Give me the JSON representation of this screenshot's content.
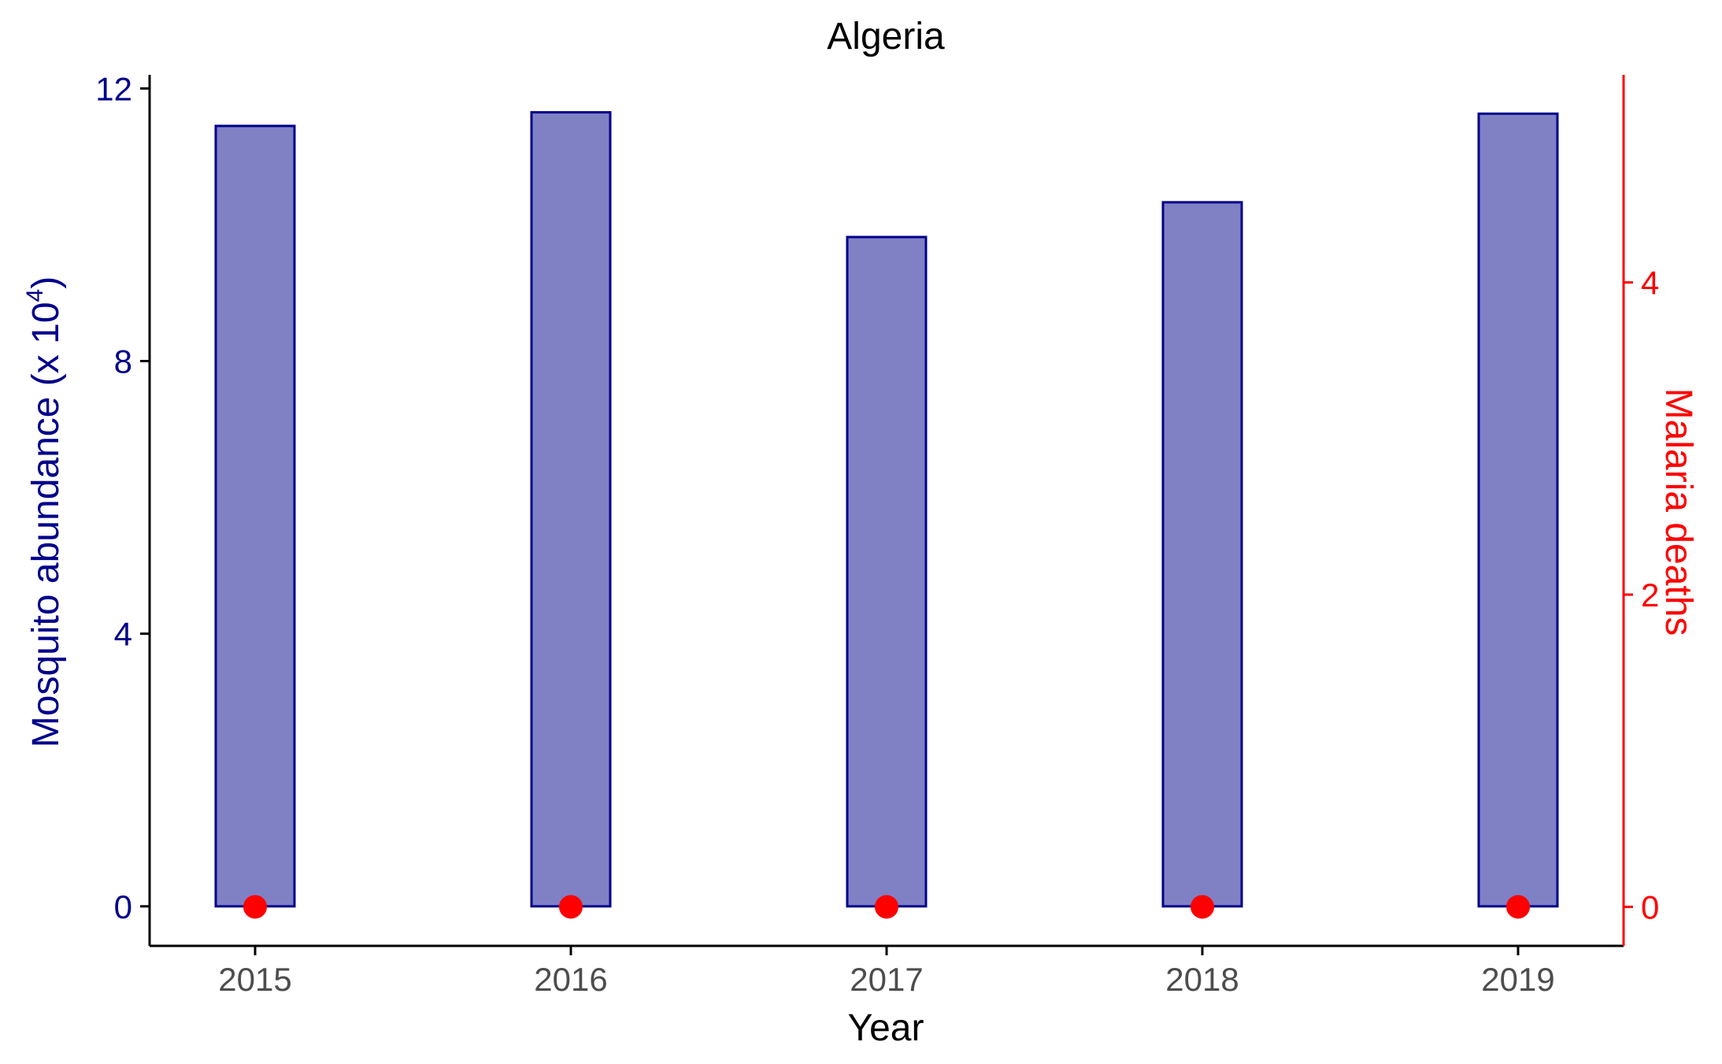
{
  "chart_data": {
    "type": "bar",
    "title": "Algeria",
    "xlabel": "Year",
    "categories": [
      "2015",
      "2016",
      "2017",
      "2018",
      "2019"
    ],
    "series": [
      {
        "name": "Mosquito abundance",
        "axis": "left",
        "kind": "bar",
        "values": [
          11.45,
          11.65,
          9.82,
          10.33,
          11.63
        ]
      },
      {
        "name": "Malaria deaths",
        "axis": "right",
        "kind": "point",
        "values": [
          0,
          0,
          0,
          0,
          0
        ]
      }
    ],
    "y_left": {
      "label_prefix": "Mosquito abundance (x 10",
      "label_exp": "4",
      "label_suffix": ")",
      "ticks": [
        0,
        4,
        8,
        12
      ],
      "range": [
        -0.58,
        12.2
      ],
      "color": "#00008B"
    },
    "y_right": {
      "label": "Malaria deaths",
      "ticks": [
        0,
        2,
        4
      ],
      "range": [
        -0.25,
        5.33
      ],
      "color": "#FF0000"
    },
    "colors": {
      "bar_fill": "#8080C5",
      "bar_stroke": "#00008B",
      "point": "#FF0000",
      "axis": "#000000",
      "x_tick_text": "#4D4D4D"
    },
    "grid": false,
    "legend": "none"
  }
}
